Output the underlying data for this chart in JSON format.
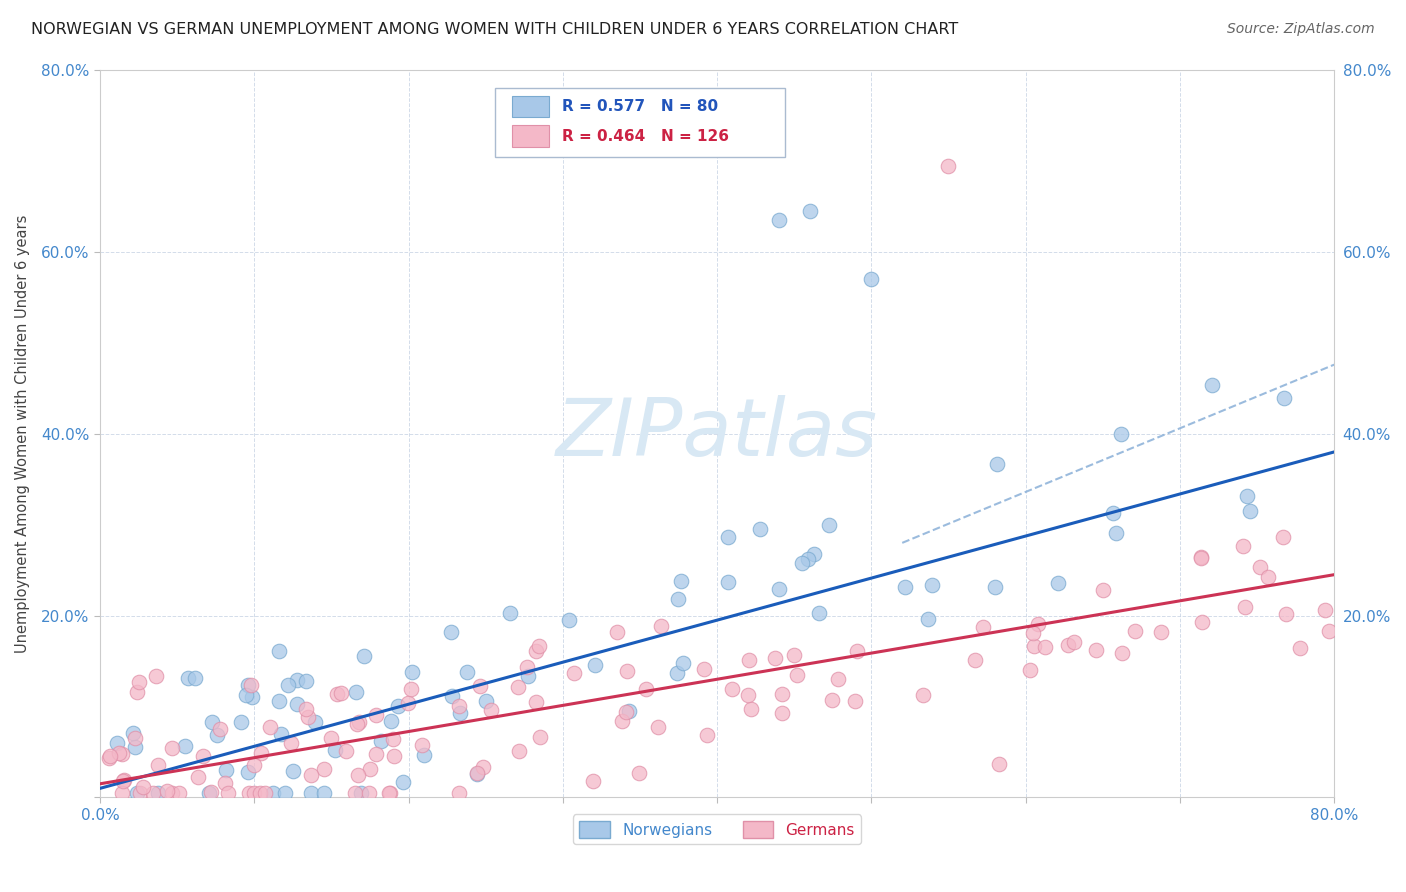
{
  "title": "NORWEGIAN VS GERMAN UNEMPLOYMENT AMONG WOMEN WITH CHILDREN UNDER 6 YEARS CORRELATION CHART",
  "source": "Source: ZipAtlas.com",
  "ylabel": "Unemployment Among Women with Children Under 6 years",
  "xlim": [
    0.0,
    0.8
  ],
  "ylim": [
    0.0,
    0.8
  ],
  "norwegian_color": "#a8c8e8",
  "norwegian_edge_color": "#7aaad0",
  "german_color": "#f4b8c8",
  "german_edge_color": "#e090a8",
  "norwegian_line_color": "#1a5cba",
  "german_line_color": "#cc3355",
  "dashed_line_color": "#8ab0d8",
  "r_norwegian": 0.577,
  "n_norwegian": 80,
  "r_german": 0.464,
  "n_german": 126,
  "background_color": "#ffffff",
  "watermark_color": "#d8e8f4",
  "grid_color": "#c8d4e4",
  "tick_label_color": "#4488cc",
  "ylabel_color": "#444444",
  "title_color": "#222222",
  "source_color": "#666666"
}
